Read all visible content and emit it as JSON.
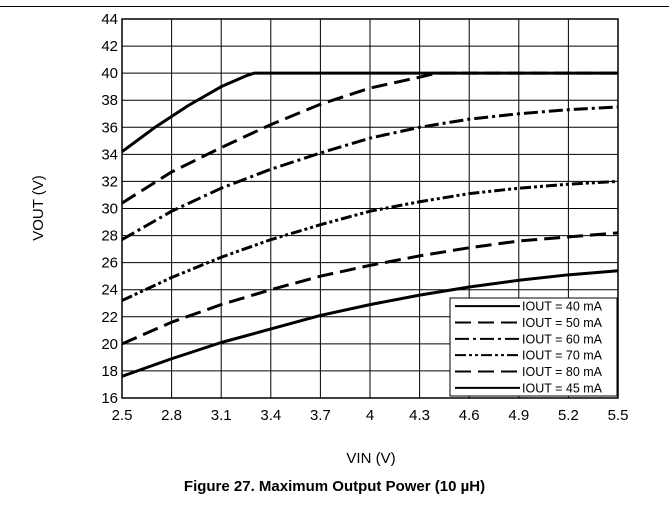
{
  "caption": "Figure 27. Maximum Output Power (10 µH)",
  "chart_data": {
    "type": "line",
    "title": "",
    "xlabel": "VIN (V)",
    "ylabel": "VOUT (V)",
    "xlim": [
      2.5,
      5.5
    ],
    "ylim": [
      16,
      44
    ],
    "xticks": [
      2.5,
      2.8,
      3.1,
      3.4,
      3.7,
      4,
      4.3,
      4.6,
      4.9,
      5.2,
      5.5
    ],
    "xtick_labels": [
      "2.5",
      "2.8",
      "3.1",
      "3.4",
      "3.7",
      "4",
      "4.3",
      "4.6",
      "4.9",
      "5.2",
      "5.5"
    ],
    "yticks": [
      16,
      18,
      20,
      22,
      24,
      26,
      28,
      30,
      32,
      34,
      36,
      38,
      40,
      42,
      44
    ],
    "ytick_labels": [
      "16",
      "18",
      "20",
      "22",
      "24",
      "26",
      "28",
      "30",
      "32",
      "34",
      "36",
      "38",
      "40",
      "42",
      "44"
    ],
    "grid": true,
    "legend_position": "bottom-right",
    "series": [
      {
        "name": "IOUT = 40 mA",
        "dash": "solid",
        "x": [
          2.5,
          2.8,
          3.1,
          3.4,
          3.7,
          4.0,
          4.3,
          4.6,
          4.9,
          5.2,
          5.5
        ],
        "y": [
          17.6,
          18.9,
          20.1,
          21.1,
          22.1,
          22.9,
          23.6,
          24.2,
          24.7,
          25.1,
          25.4
        ]
      },
      {
        "name": "IOUT = 50 mA",
        "dash": "long-dash",
        "x": [
          2.5,
          2.8,
          3.1,
          3.4,
          3.7,
          4.0,
          4.3,
          4.6,
          4.9,
          5.2,
          5.5
        ],
        "y": [
          20.0,
          21.6,
          22.9,
          24.0,
          25.0,
          25.8,
          26.5,
          27.1,
          27.6,
          27.9,
          28.2
        ]
      },
      {
        "name": "IOUT = 60 mA",
        "dash": "dash-dot",
        "x": [
          2.5,
          2.8,
          3.1,
          3.4,
          3.7,
          4.0,
          4.3,
          4.6,
          4.9,
          5.2,
          5.5
        ],
        "y": [
          27.7,
          29.8,
          31.5,
          32.9,
          34.1,
          35.2,
          36.0,
          36.6,
          37.0,
          37.3,
          37.5
        ]
      },
      {
        "name": "IOUT = 70 mA",
        "dash": "dash-dot-dot",
        "x": [
          2.5,
          2.8,
          3.1,
          3.4,
          3.7,
          4.0,
          4.3,
          4.6,
          4.9,
          5.2,
          5.5
        ],
        "y": [
          23.2,
          24.9,
          26.4,
          27.7,
          28.8,
          29.8,
          30.5,
          31.1,
          31.5,
          31.8,
          32.0
        ]
      },
      {
        "name": "IOUT = 80 mA",
        "dash": "long-dash",
        "x": [
          2.5,
          2.8,
          3.1,
          3.4,
          3.7,
          4.0,
          4.3,
          4.4,
          4.6,
          4.9,
          5.2,
          5.5
        ],
        "y": [
          30.4,
          32.7,
          34.5,
          36.2,
          37.7,
          38.9,
          39.7,
          40.0,
          40.0,
          40.0,
          40.0,
          40.0
        ]
      },
      {
        "name": "IOUT = 45 mA",
        "dash": "solid",
        "x": [
          2.5,
          2.7,
          2.9,
          3.1,
          3.25,
          3.3,
          3.7,
          4.0,
          4.3,
          4.6,
          4.9,
          5.2,
          5.5
        ],
        "y": [
          34.2,
          36.0,
          37.6,
          39.0,
          39.8,
          40.0,
          40.0,
          40.0,
          40.0,
          40.0,
          40.0,
          40.0,
          40.0
        ]
      }
    ]
  }
}
